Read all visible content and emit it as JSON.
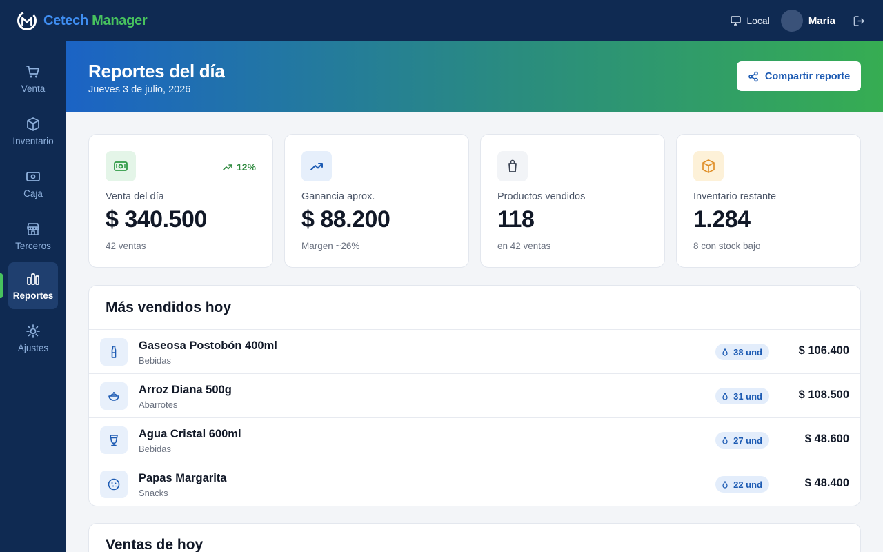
{
  "brand": {
    "part1": "Cetech",
    "part2": "Manager"
  },
  "topbar": {
    "location": "Local",
    "user": "María"
  },
  "sidebar": {
    "items": [
      {
        "label": "Venta",
        "icon": "cart-icon"
      },
      {
        "label": "Inventario",
        "icon": "box-icon"
      },
      {
        "label": "Caja",
        "icon": "cash-icon"
      },
      {
        "label": "Terceros",
        "icon": "store-icon"
      },
      {
        "label": "Reportes",
        "icon": "bar-chart-icon",
        "active": true
      },
      {
        "label": "Ajustes",
        "icon": "sun-gear-icon"
      }
    ]
  },
  "header": {
    "title": "Reportes del día",
    "date": "Jueves 3 de julio, 2026",
    "share_label": "Compartir reporte"
  },
  "stats": [
    {
      "label": "Venta del día",
      "value": "$ 340.500",
      "foot": "42 ventas",
      "trend": "12%",
      "icon": "cash-icon"
    },
    {
      "label": "Ganancia aprox.",
      "value": "$ 88.200",
      "foot": "Margen ~26%",
      "icon": "trending-up-icon"
    },
    {
      "label": "Productos vendidos",
      "value": "118",
      "foot": "en 42 ventas",
      "icon": "bag-icon"
    },
    {
      "label": "Inventario restante",
      "value": "1.284",
      "foot": "8 con stock bajo",
      "icon": "box-icon"
    }
  ],
  "top_products": {
    "title": "Más vendidos hoy",
    "rows": [
      {
        "name": "Gaseosa Postobón 400ml",
        "category": "Bebidas",
        "qty": "38 und",
        "total": "$ 106.400",
        "icon": "bottle-icon"
      },
      {
        "name": "Arroz Diana 500g",
        "category": "Abarrotes",
        "qty": "31 und",
        "total": "$ 108.500",
        "icon": "bowl-icon"
      },
      {
        "name": "Agua Cristal 600ml",
        "category": "Bebidas",
        "qty": "27 und",
        "total": "$ 48.600",
        "icon": "glass-icon"
      },
      {
        "name": "Papas Margarita",
        "category": "Snacks",
        "qty": "22 und",
        "total": "$ 48.400",
        "icon": "cookie-icon"
      }
    ]
  },
  "sales_today": {
    "title": "Ventas de hoy"
  }
}
